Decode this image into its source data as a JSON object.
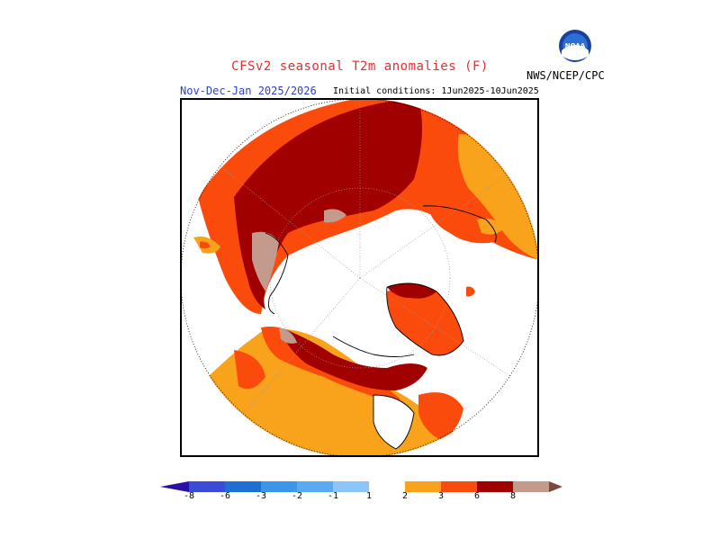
{
  "header": {
    "title": "CFSv2 seasonal T2m anomalies (F)",
    "valid_period": "Nov-Dec-Jan 2025/2026",
    "initial_conditions": "Initial conditions: 1Jun2025-10Jun2025",
    "agency": "NWS/NCEP/CPC"
  },
  "logo": {
    "text": "NOAA",
    "icon": "noaa-logo-icon"
  },
  "map": {
    "projection": "polar-stereographic-north",
    "colors": {
      "ocean": "#ffffff",
      "orange_1_2": "#f9a21b",
      "orange_2_3": "#fb4b0c",
      "darkred_3_6": "#a00000",
      "tan_6_8": "#c49a8c"
    }
  },
  "colorbar": {
    "labels": [
      "-8",
      "-6",
      "-3",
      "-2",
      "-1",
      "1",
      "2",
      "3",
      "6",
      "8"
    ],
    "colors": [
      "#2d0fa8",
      "#3b4bd8",
      "#1f6ed4",
      "#3b96ea",
      "#8cc6f8",
      "#ffffff",
      "#f9a21b",
      "#fb4b0c",
      "#a00000",
      "#c49a8c",
      "#7a4a3e"
    ]
  }
}
